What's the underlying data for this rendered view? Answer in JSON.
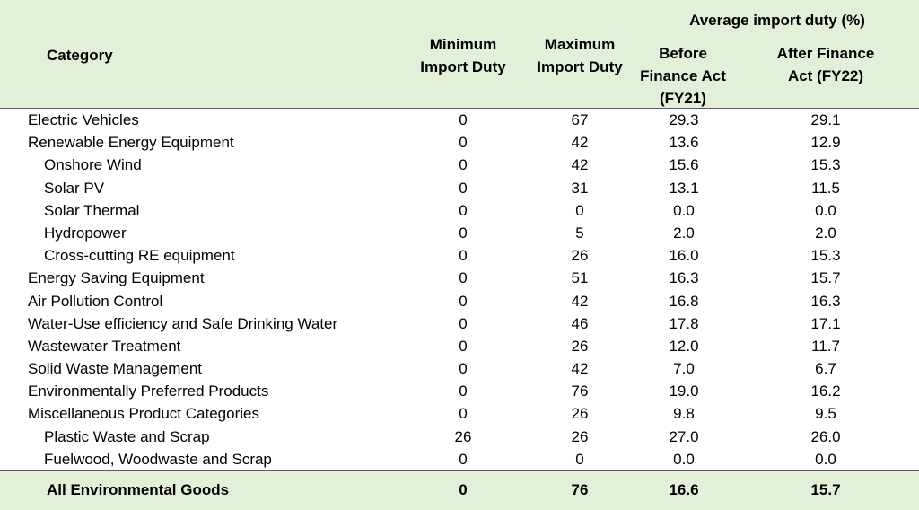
{
  "header": {
    "category": "Category",
    "min_duty": "Minimum Import Duty",
    "max_duty": "Maximum Import Duty",
    "avg_group": "Average import duty (%)",
    "before": "Before Finance Act (FY21)",
    "after": "After Finance Act (FY22)"
  },
  "rows": [
    {
      "name": "Electric Vehicles",
      "min": "0",
      "max": "67",
      "before": "29.3",
      "after": "29.1",
      "indent": false
    },
    {
      "name": "Renewable Energy Equipment",
      "min": "0",
      "max": "42",
      "before": "13.6",
      "after": "12.9",
      "indent": false
    },
    {
      "name": "Onshore Wind",
      "min": "0",
      "max": "42",
      "before": "15.6",
      "after": "15.3",
      "indent": true
    },
    {
      "name": "Solar PV",
      "min": "0",
      "max": "31",
      "before": "13.1",
      "after": "11.5",
      "indent": true
    },
    {
      "name": "Solar Thermal",
      "min": "0",
      "max": "0",
      "before": "0.0",
      "after": "0.0",
      "indent": true
    },
    {
      "name": "Hydropower",
      "min": "0",
      "max": "5",
      "before": "2.0",
      "after": "2.0",
      "indent": true
    },
    {
      "name": "Cross-cutting RE equipment",
      "min": "0",
      "max": "26",
      "before": "16.0",
      "after": "15.3",
      "indent": true
    },
    {
      "name": "Energy Saving Equipment",
      "min": "0",
      "max": "51",
      "before": "16.3",
      "after": "15.7",
      "indent": false
    },
    {
      "name": "Air Pollution Control",
      "min": "0",
      "max": "42",
      "before": "16.8",
      "after": "16.3",
      "indent": false
    },
    {
      "name": "Water-Use efficiency and Safe Drinking Water",
      "min": "0",
      "max": "46",
      "before": "17.8",
      "after": "17.1",
      "indent": false
    },
    {
      "name": "Wastewater Treatment",
      "min": "0",
      "max": "26",
      "before": "12.0",
      "after": "11.7",
      "indent": false
    },
    {
      "name": "Solid Waste Management",
      "min": "0",
      "max": "42",
      "before": "7.0",
      "after": "6.7",
      "indent": false
    },
    {
      "name": "Environmentally Preferred Products",
      "min": "0",
      "max": "76",
      "before": "19.0",
      "after": "16.2",
      "indent": false
    },
    {
      "name": "Miscellaneous Product Categories",
      "min": "0",
      "max": "26",
      "before": "9.8",
      "after": "9.5",
      "indent": false
    },
    {
      "name": "Plastic Waste and Scrap",
      "min": "26",
      "max": "26",
      "before": "27.0",
      "after": "26.0",
      "indent": true
    },
    {
      "name": "Fuelwood, Woodwaste and Scrap",
      "min": "0",
      "max": "0",
      "before": "0.0",
      "after": "0.0",
      "indent": true
    }
  ],
  "total": {
    "name": "All Environmental Goods",
    "min": "0",
    "max": "76",
    "before": "16.6",
    "after": "15.7"
  }
}
